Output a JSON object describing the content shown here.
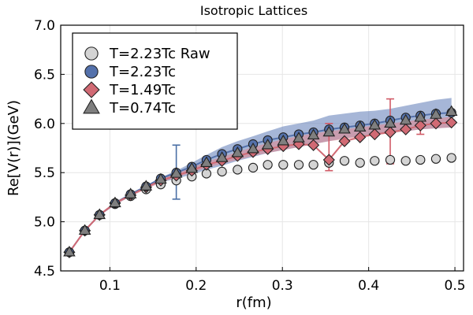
{
  "chart_data": {
    "type": "scatter",
    "title": "Isotropic Lattices",
    "xlabel": "r(fm)",
    "ylabel": "Re[V(r)](GeV)",
    "xlim": [
      0.043,
      0.51
    ],
    "ylim": [
      4.5,
      7.0
    ],
    "xticks": [
      0.1,
      0.2,
      0.3,
      0.4,
      0.5
    ],
    "xtick_labels": [
      "0.1",
      "0.2",
      "0.3",
      "0.4",
      "0.5"
    ],
    "yticks": [
      4.5,
      5.0,
      5.5,
      6.0,
      6.5,
      7.0
    ],
    "ytick_labels": [
      "4.5",
      "5.0",
      "5.5",
      "6.0",
      "6.5",
      "7.0"
    ],
    "grid": true,
    "legend_position": "top-left",
    "x": [
      0.053,
      0.071,
      0.088,
      0.106,
      0.124,
      0.142,
      0.159,
      0.177,
      0.195,
      0.212,
      0.23,
      0.248,
      0.266,
      0.283,
      0.301,
      0.319,
      0.336,
      0.354,
      0.372,
      0.39,
      0.407,
      0.425,
      0.443,
      0.46,
      0.478,
      0.496
    ],
    "series": [
      {
        "name": "T=2.23Tc Raw",
        "marker": "circle",
        "color": "#d4d4d4",
        "values": [
          4.69,
          4.91,
          5.07,
          5.18,
          5.26,
          5.33,
          5.38,
          5.42,
          5.46,
          5.49,
          5.51,
          5.53,
          5.55,
          5.58,
          5.58,
          5.58,
          5.58,
          5.6,
          5.62,
          5.6,
          5.62,
          5.63,
          5.62,
          5.63,
          5.64,
          5.65
        ]
      },
      {
        "name": "T=2.23Tc",
        "marker": "circle",
        "color": "#5471ab",
        "band_color": "#6b86bd",
        "band_upper": [
          4.7,
          4.92,
          5.08,
          5.2,
          5.29,
          5.37,
          5.45,
          5.52,
          5.6,
          5.68,
          5.76,
          5.82,
          5.87,
          5.92,
          5.97,
          6.0,
          6.03,
          6.08,
          6.1,
          6.12,
          6.13,
          6.15,
          6.18,
          6.21,
          6.24,
          6.26
        ],
        "band_lower": [
          4.68,
          4.9,
          5.06,
          5.17,
          5.26,
          5.34,
          5.4,
          5.44,
          5.48,
          5.53,
          5.57,
          5.62,
          5.66,
          5.7,
          5.73,
          5.76,
          5.79,
          5.82,
          5.85,
          5.87,
          5.89,
          5.91,
          5.92,
          5.94,
          5.95,
          5.96
        ],
        "values": [
          4.69,
          4.91,
          5.07,
          5.19,
          5.28,
          5.36,
          5.44,
          5.5,
          5.56,
          5.63,
          5.69,
          5.74,
          5.79,
          5.83,
          5.86,
          5.89,
          5.91,
          5.94,
          5.96,
          5.98,
          6.0,
          6.03,
          6.06,
          6.08,
          6.1,
          6.11
        ],
        "error_bar": {
          "x": 0.177,
          "y": 5.5,
          "low": 5.23,
          "high": 5.78
        }
      },
      {
        "name": "T=1.49Tc",
        "marker": "diamond",
        "color": "#d16a74",
        "band_color": "#e08a93",
        "band_upper": [
          4.7,
          4.92,
          5.08,
          5.2,
          5.28,
          5.36,
          5.43,
          5.49,
          5.55,
          5.61,
          5.66,
          5.71,
          5.76,
          5.8,
          5.84,
          5.87,
          5.9,
          5.92,
          5.94,
          5.96,
          5.98,
          6.0,
          6.02,
          6.04,
          6.05,
          6.07
        ],
        "band_lower": [
          4.68,
          4.9,
          5.06,
          5.17,
          5.26,
          5.33,
          5.4,
          5.45,
          5.5,
          5.55,
          5.59,
          5.63,
          5.67,
          5.7,
          5.73,
          5.76,
          5.79,
          5.82,
          5.84,
          5.86,
          5.88,
          5.9,
          5.92,
          5.94,
          5.95,
          5.96
        ],
        "values": [
          4.69,
          4.91,
          5.07,
          5.19,
          5.27,
          5.35,
          5.42,
          5.47,
          5.52,
          5.58,
          5.62,
          5.67,
          5.71,
          5.74,
          5.77,
          5.79,
          5.78,
          5.63,
          5.82,
          5.86,
          5.89,
          5.91,
          5.94,
          5.98,
          6.0,
          6.01
        ],
        "error_bars": [
          {
            "x": 0.354,
            "y": 5.63,
            "low": 5.52,
            "high": 6.0
          },
          {
            "x": 0.425,
            "y": 5.91,
            "low": 5.59,
            "high": 6.25
          },
          {
            "x": 0.46,
            "y": 5.98,
            "low": 5.89,
            "high": 6.07
          }
        ]
      },
      {
        "name": "T=0.74Tc",
        "marker": "triangle",
        "color": "#7f7f7f",
        "values": [
          4.69,
          4.91,
          5.07,
          5.19,
          5.28,
          5.36,
          5.43,
          5.49,
          5.54,
          5.6,
          5.65,
          5.7,
          5.74,
          5.78,
          5.82,
          5.85,
          5.88,
          5.91,
          5.94,
          5.96,
          5.98,
          6.0,
          6.03,
          6.06,
          6.09,
          6.12
        ]
      }
    ]
  }
}
